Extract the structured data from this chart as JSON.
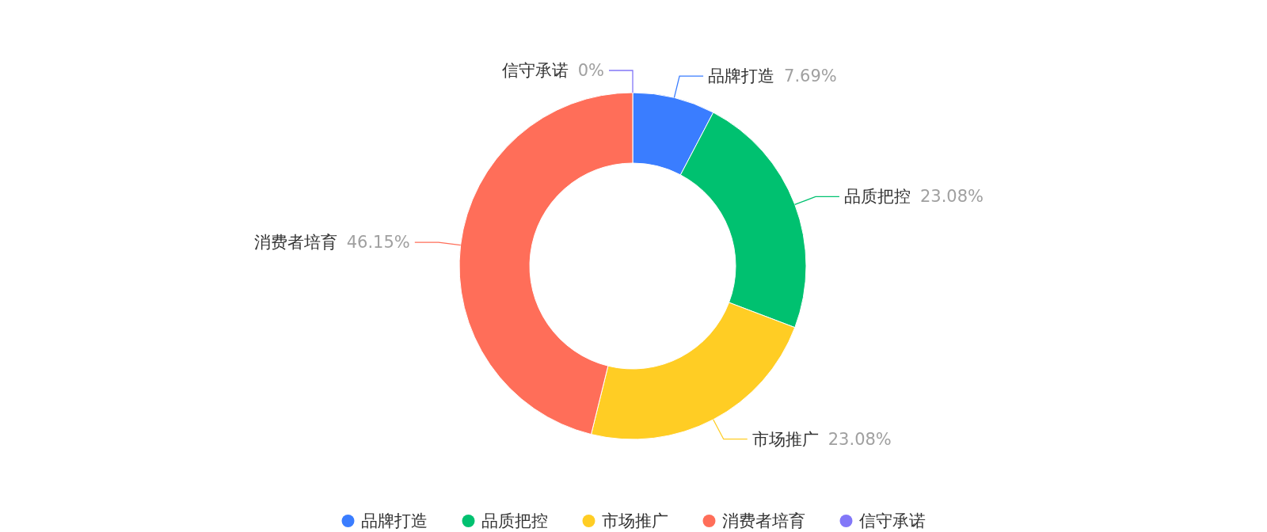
{
  "chart_data": {
    "type": "donut",
    "categories": [
      "品牌打造",
      "品质把控",
      "市场推广",
      "消费者培育",
      "信守承诺"
    ],
    "values": [
      7.69,
      23.08,
      23.08,
      46.15,
      0
    ],
    "value_labels": [
      "7.69%",
      "23.08%",
      "23.08%",
      "46.15%",
      "0%"
    ],
    "colors": [
      "#3a7dff",
      "#00c170",
      "#ffcd24",
      "#ff6e59",
      "#8277f8"
    ],
    "legend": "bottom"
  }
}
